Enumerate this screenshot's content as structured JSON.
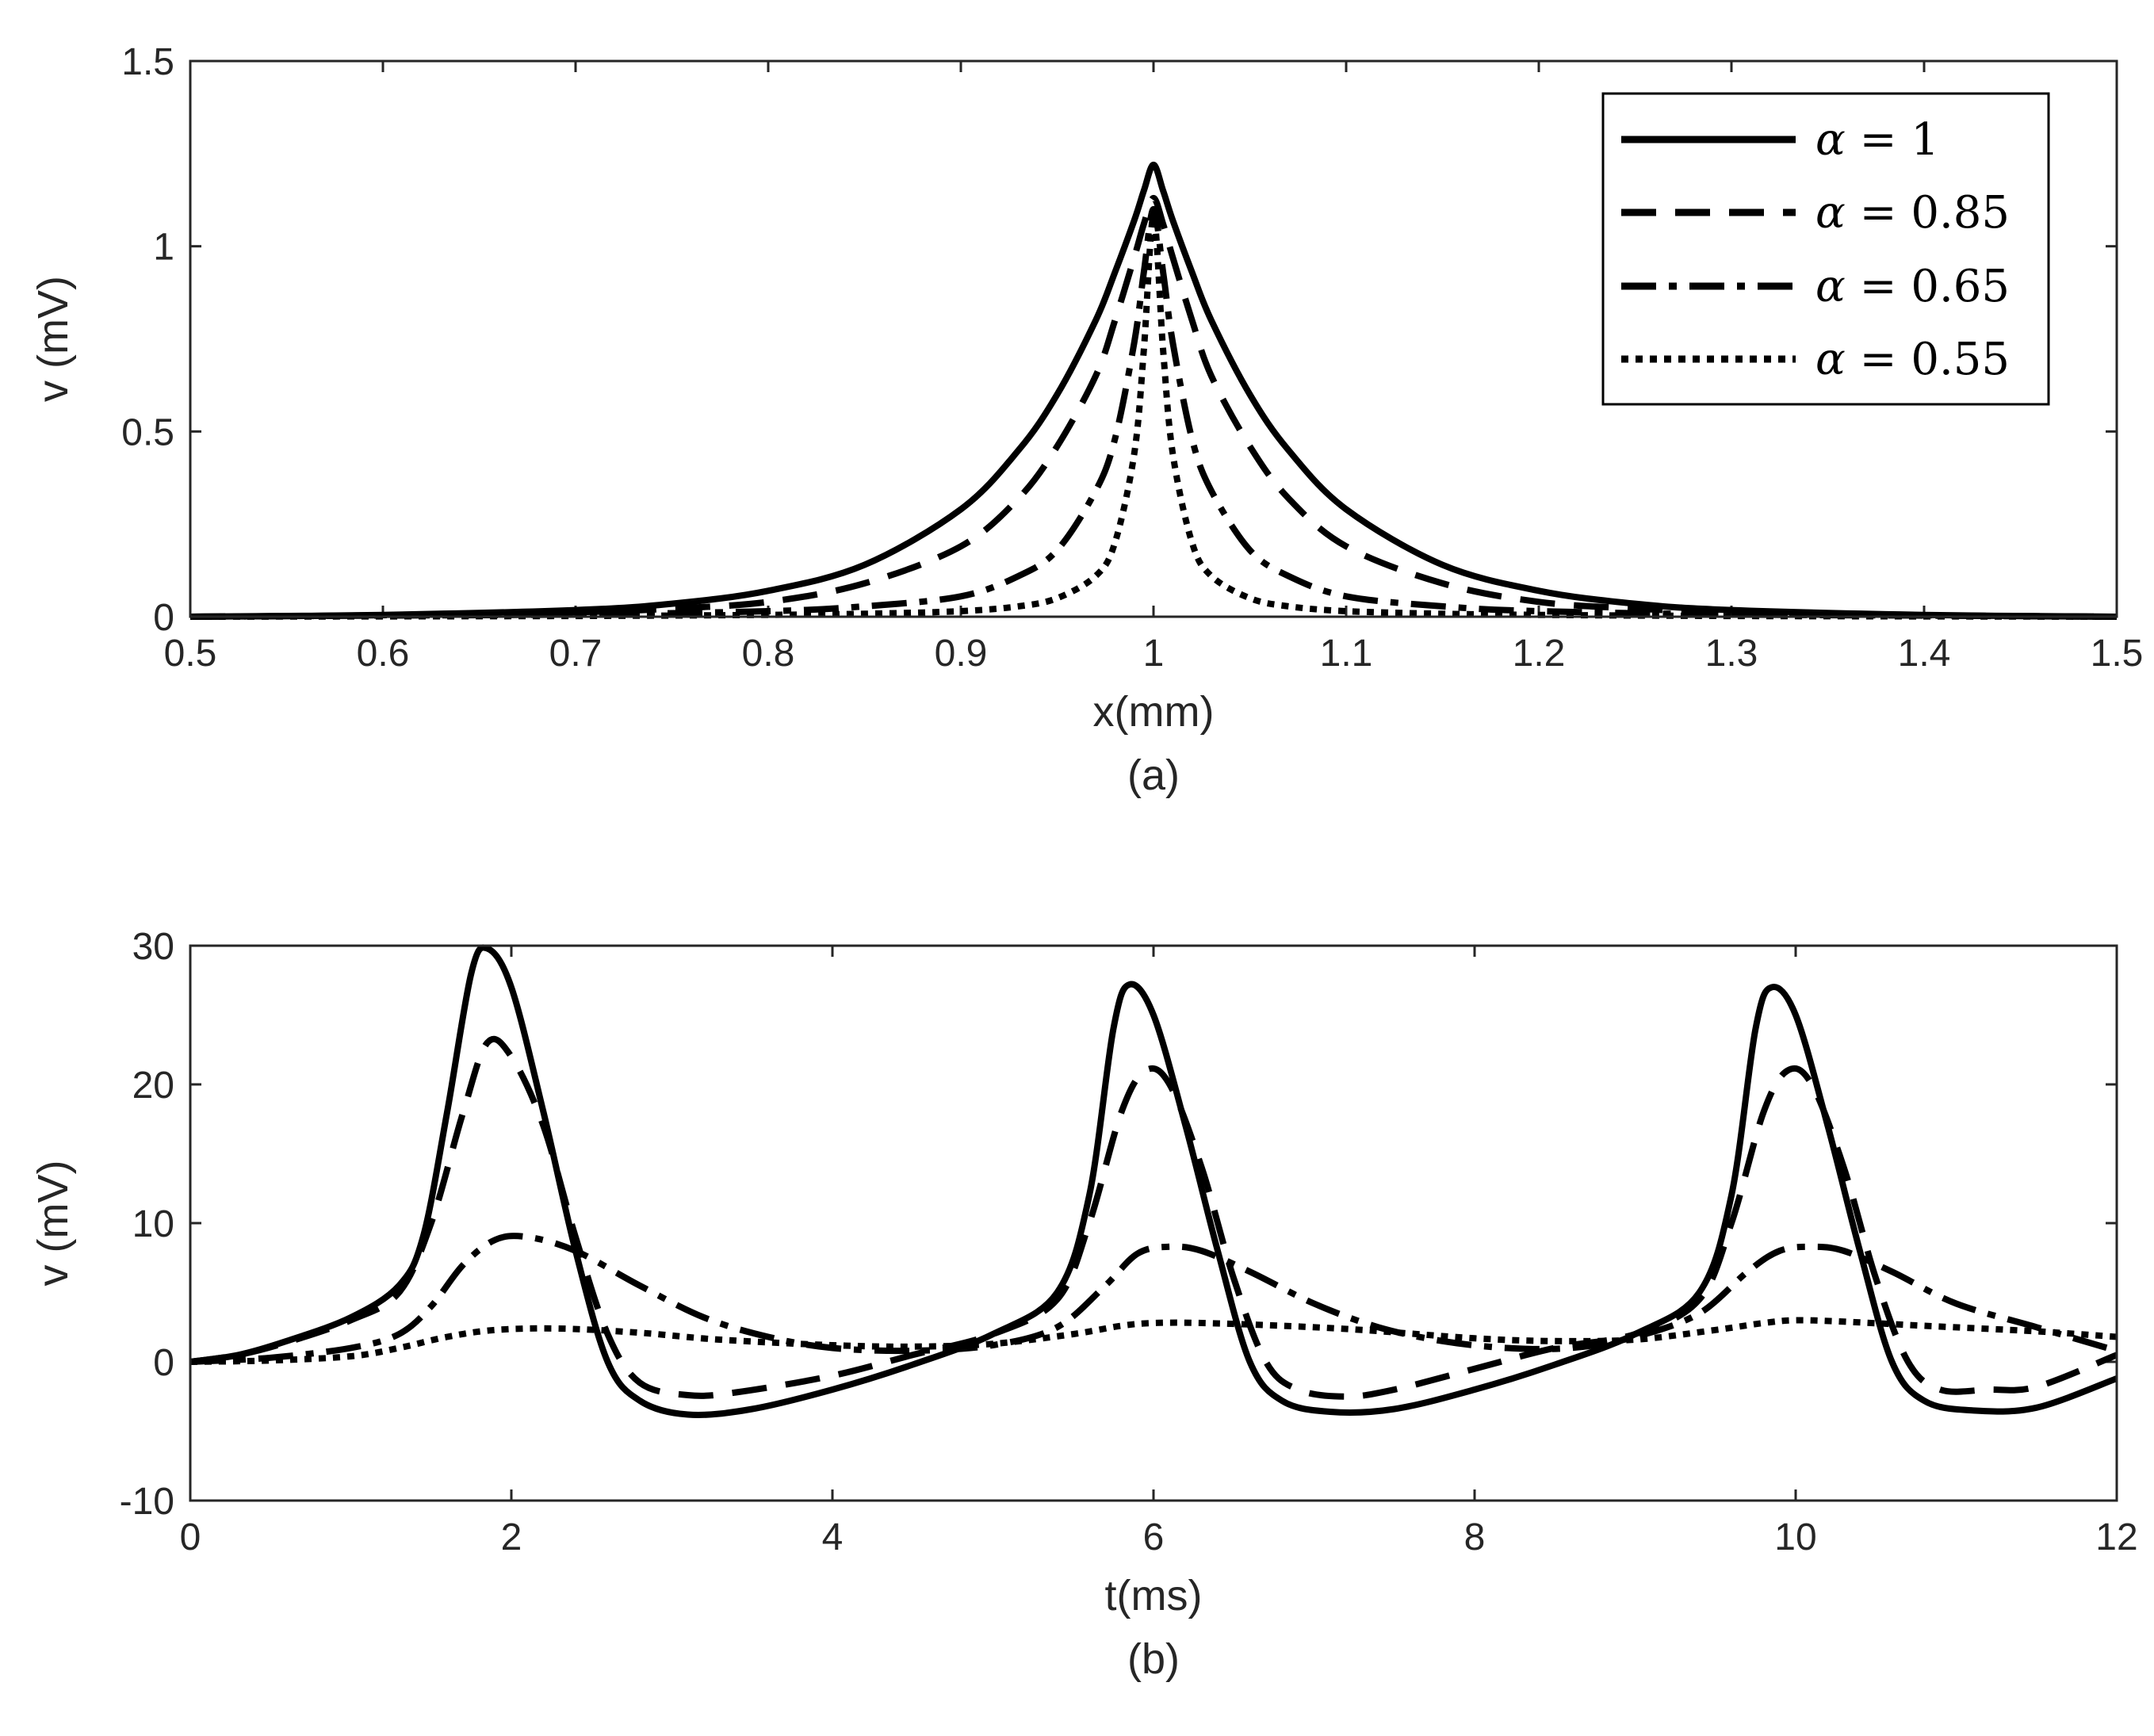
{
  "chart_data": [
    {
      "type": "line",
      "panel_label": "(a)",
      "xlabel": "x(mm)",
      "ylabel": "v (mV)",
      "xlim": [
        0.5,
        1.5
      ],
      "ylim": [
        0,
        1.5
      ],
      "xticks": [
        0.5,
        0.6,
        0.7,
        0.8,
        0.9,
        1.0,
        1.1,
        1.2,
        1.3,
        1.4,
        1.5
      ],
      "xtick_labels": [
        "0.5",
        "0.6",
        "0.7",
        "0.8",
        "0.9",
        "1",
        "1.1",
        "1.2",
        "1.3",
        "1.4",
        "1.5"
      ],
      "yticks": [
        0,
        0.5,
        1,
        1.5
      ],
      "ytick_labels": [
        "0",
        "0.5",
        "1",
        "1.5"
      ],
      "legend_position": "top-right",
      "series": [
        {
          "name": "α = 1",
          "math": "1",
          "style": "solid",
          "x": [
            0.5,
            0.6,
            0.7,
            0.75,
            0.8,
            0.85,
            0.9,
            0.93,
            0.95,
            0.97,
            0.98,
            0.99,
            0.995,
            1.0,
            1.005,
            1.01,
            1.02,
            1.03,
            1.05,
            1.07,
            1.1,
            1.15,
            1.2,
            1.25,
            1.3,
            1.4,
            1.5
          ],
          "y": [
            0.0,
            0.005,
            0.018,
            0.035,
            0.07,
            0.14,
            0.29,
            0.45,
            0.6,
            0.8,
            0.93,
            1.07,
            1.15,
            1.22,
            1.15,
            1.07,
            0.93,
            0.8,
            0.6,
            0.45,
            0.29,
            0.14,
            0.07,
            0.035,
            0.018,
            0.005,
            0.0
          ]
        },
        {
          "name": "α = 0.85",
          "math": "0.85",
          "style": "dashed",
          "x": [
            0.5,
            0.6,
            0.7,
            0.75,
            0.8,
            0.85,
            0.9,
            0.93,
            0.95,
            0.97,
            0.98,
            0.99,
            0.995,
            1.0,
            1.005,
            1.01,
            1.02,
            1.03,
            1.05,
            1.07,
            1.1,
            1.15,
            1.2,
            1.25,
            1.3,
            1.4,
            1.5
          ],
          "y": [
            0.0,
            0.004,
            0.012,
            0.022,
            0.04,
            0.09,
            0.19,
            0.32,
            0.46,
            0.65,
            0.8,
            0.97,
            1.06,
            1.13,
            1.06,
            0.97,
            0.8,
            0.65,
            0.46,
            0.32,
            0.19,
            0.09,
            0.04,
            0.022,
            0.012,
            0.004,
            0.0
          ]
        },
        {
          "name": "α = 0.65",
          "math": "0.65",
          "style": "dashdot",
          "x": [
            0.5,
            0.6,
            0.7,
            0.8,
            0.85,
            0.9,
            0.93,
            0.95,
            0.97,
            0.98,
            0.99,
            0.995,
            1.0,
            1.005,
            1.01,
            1.02,
            1.03,
            1.05,
            1.07,
            1.1,
            1.15,
            1.2,
            1.3,
            1.4,
            1.5
          ],
          "y": [
            0.0,
            0.003,
            0.006,
            0.015,
            0.028,
            0.055,
            0.11,
            0.18,
            0.34,
            0.48,
            0.74,
            0.93,
            1.1,
            0.93,
            0.74,
            0.48,
            0.34,
            0.18,
            0.11,
            0.055,
            0.028,
            0.015,
            0.006,
            0.003,
            0.0
          ]
        },
        {
          "name": "α = 0.55",
          "math": "0.55",
          "style": "dotted",
          "x": [
            0.5,
            0.7,
            0.8,
            0.85,
            0.9,
            0.93,
            0.95,
            0.97,
            0.98,
            0.99,
            0.995,
            1.0,
            1.005,
            1.01,
            1.02,
            1.03,
            1.05,
            1.07,
            1.1,
            1.15,
            1.2,
            1.3,
            1.5
          ],
          "y": [
            0.0,
            0.002,
            0.005,
            0.008,
            0.015,
            0.028,
            0.05,
            0.11,
            0.2,
            0.44,
            0.72,
            1.08,
            0.72,
            0.44,
            0.2,
            0.11,
            0.05,
            0.028,
            0.015,
            0.008,
            0.005,
            0.002,
            0.0
          ]
        }
      ]
    },
    {
      "type": "line",
      "panel_label": "(b)",
      "xlabel": "t(ms)",
      "ylabel": "v (mV)",
      "xlim": [
        0,
        12
      ],
      "ylim": [
        -10,
        30
      ],
      "xticks": [
        0,
        2,
        4,
        6,
        8,
        10,
        12
      ],
      "xtick_labels": [
        "0",
        "2",
        "4",
        "6",
        "8",
        "10",
        "12"
      ],
      "yticks": [
        -10,
        0,
        10,
        20,
        30
      ],
      "ytick_labels": [
        "-10",
        "0",
        "10",
        "20",
        "30"
      ],
      "series": [
        {
          "name": "α = 1",
          "style": "solid",
          "x": [
            0,
            0.3,
            0.6,
            1.0,
            1.3,
            1.45,
            1.6,
            1.75,
            1.85,
            2.0,
            2.2,
            2.4,
            2.6,
            2.8,
            3.1,
            3.5,
            4.0,
            4.5,
            5.0,
            5.4,
            5.6,
            5.75,
            5.85,
            6.0,
            6.2,
            6.4,
            6.6,
            6.8,
            7.1,
            7.5,
            8.0,
            8.5,
            9.0,
            9.4,
            9.6,
            9.75,
            9.85,
            10.0,
            10.2,
            10.4,
            10.6,
            10.8,
            11.1,
            11.5,
            12.0
          ],
          "y": [
            0,
            0.5,
            1.5,
            3.2,
            5.5,
            9,
            18,
            28,
            29.8,
            27,
            18,
            8,
            0,
            -2.8,
            -3.8,
            -3.4,
            -2,
            -0.2,
            2,
            5,
            12,
            24,
            27.2,
            25,
            17,
            8,
            0,
            -2.8,
            -3.6,
            -3.4,
            -2,
            -0.2,
            2,
            5,
            12,
            24,
            27,
            25,
            17,
            8,
            0,
            -2.8,
            -3.5,
            -3.3,
            -1.2
          ]
        },
        {
          "name": "α = 0.85",
          "style": "dashed",
          "x": [
            0,
            0.3,
            0.6,
            1.0,
            1.3,
            1.5,
            1.7,
            1.85,
            2.0,
            2.2,
            2.4,
            2.6,
            2.8,
            3.1,
            3.4,
            4.0,
            4.5,
            5.0,
            5.4,
            5.6,
            5.8,
            5.95,
            6.1,
            6.3,
            6.5,
            6.7,
            6.9,
            7.2,
            7.5,
            8.0,
            8.5,
            9.0,
            9.4,
            9.6,
            9.8,
            9.95,
            10.1,
            10.3,
            10.5,
            10.7,
            10.9,
            11.2,
            11.5,
            12.0
          ],
          "y": [
            0,
            0.5,
            1.4,
            3.0,
            5.0,
            10,
            18,
            23,
            22,
            17,
            9,
            2,
            -1.5,
            -2.4,
            -2.2,
            -1,
            0.5,
            2,
            4.5,
            10,
            18,
            21,
            20,
            14,
            6,
            0,
            -2,
            -2.5,
            -2,
            -0.5,
            1,
            2,
            4.5,
            10,
            18,
            21,
            20,
            14,
            6,
            0,
            -2,
            -2,
            -1.8,
            0.5
          ]
        },
        {
          "name": "α = 0.65",
          "style": "dashdot",
          "x": [
            0,
            0.5,
            1.0,
            1.3,
            1.5,
            1.7,
            1.9,
            2.1,
            2.4,
            2.8,
            3.2,
            3.6,
            4.0,
            4.5,
            5.0,
            5.4,
            5.7,
            5.9,
            6.1,
            6.3,
            6.6,
            7.0,
            7.4,
            7.8,
            8.2,
            8.6,
            9.0,
            9.4,
            9.7,
            9.9,
            10.1,
            10.3,
            10.6,
            11.0,
            11.5,
            12.0
          ],
          "y": [
            0,
            0.3,
            1.0,
            2.0,
            4,
            7,
            8.8,
            9,
            8,
            5.5,
            3.2,
            1.8,
            1.0,
            0.8,
            1.2,
            2.5,
            5.5,
            7.8,
            8.3,
            8,
            6.5,
            4.2,
            2.5,
            1.5,
            1.0,
            1.0,
            1.8,
            3.5,
            6.5,
            8,
            8.3,
            8,
            6.5,
            4.2,
            2.5,
            0.8
          ]
        },
        {
          "name": "α = 0.55",
          "style": "dotted",
          "x": [
            0,
            0.5,
            1.0,
            1.3,
            1.6,
            1.9,
            2.3,
            2.8,
            3.3,
            4.0,
            4.5,
            5.0,
            5.5,
            5.8,
            6.0,
            6.3,
            6.8,
            7.3,
            8.0,
            8.5,
            9.0,
            9.5,
            9.8,
            10.0,
            10.3,
            10.8,
            11.5,
            12.0
          ],
          "y": [
            0,
            0.1,
            0.4,
            1.0,
            1.8,
            2.3,
            2.4,
            2.1,
            1.6,
            1.2,
            1.1,
            1.3,
            2.0,
            2.6,
            2.8,
            2.8,
            2.6,
            2.3,
            1.7,
            1.5,
            1.6,
            2.3,
            2.8,
            3.0,
            2.9,
            2.6,
            2.2,
            1.8
          ]
        }
      ]
    }
  ]
}
